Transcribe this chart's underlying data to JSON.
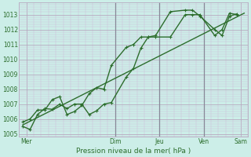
{
  "xlabel": "Pression niveau de la mer( hPa )",
  "bg_color": "#cceee8",
  "grid_major_color": "#b8a8c0",
  "grid_minor_color": "#d0c0d8",
  "line_color": "#2d6e2d",
  "tick_color": "#2d6e2d",
  "vline_color": "#888898",
  "ylim": [
    1004.8,
    1013.8
  ],
  "xlim": [
    0,
    31
  ],
  "yticks": [
    1005,
    1006,
    1007,
    1008,
    1009,
    1010,
    1011,
    1012,
    1013
  ],
  "day_labels": [
    "Mer",
    "Dim",
    "Jeu",
    "Ven",
    "Sam"
  ],
  "day_positions": [
    1,
    13,
    19,
    25,
    30
  ],
  "vline_positions": [
    13,
    19,
    25
  ],
  "trend_x": [
    0.5,
    30.5
  ],
  "trend_y": [
    1005.6,
    1013.1
  ],
  "line1_x": [
    0.5,
    1.5,
    2.5,
    3.5,
    4.5,
    5.5,
    6.5,
    7.5,
    8.5,
    9.5,
    10.5,
    11.5,
    12.5,
    14.5,
    15.5,
    16.5,
    17.5,
    18.5,
    20.5,
    22.5,
    23.5,
    24.5,
    26.5,
    27.5,
    28.5,
    29.5
  ],
  "line1_y": [
    1005.5,
    1005.3,
    1006.3,
    1006.7,
    1006.65,
    1007.0,
    1006.7,
    1007.0,
    1007.0,
    1006.3,
    1006.55,
    1007.0,
    1007.1,
    1008.8,
    1009.4,
    1010.75,
    1011.5,
    1011.5,
    1011.5,
    1013.0,
    1013.0,
    1013.0,
    1011.6,
    1012.0,
    1013.1,
    1013.0
  ],
  "line2_x": [
    0.5,
    1.5,
    2.5,
    3.5,
    4.5,
    5.5,
    6.5,
    7.5,
    8.5,
    9.5,
    10.5,
    11.5,
    12.5,
    14.5,
    15.5,
    16.5,
    17.5,
    18.5,
    20.5,
    22.5,
    23.5,
    24.5,
    26.5,
    27.5,
    28.5,
    29.5
  ],
  "line2_y": [
    1005.8,
    1006.0,
    1006.6,
    1006.6,
    1007.3,
    1007.5,
    1006.3,
    1006.5,
    1006.9,
    1007.7,
    1008.1,
    1008.0,
    1009.6,
    1010.8,
    1011.0,
    1011.5,
    1011.5,
    1011.6,
    1013.2,
    1013.3,
    1013.3,
    1012.9,
    1012.0,
    1011.6,
    1012.9,
    1013.05
  ],
  "marker_size": 2.5,
  "line_width": 1.0
}
